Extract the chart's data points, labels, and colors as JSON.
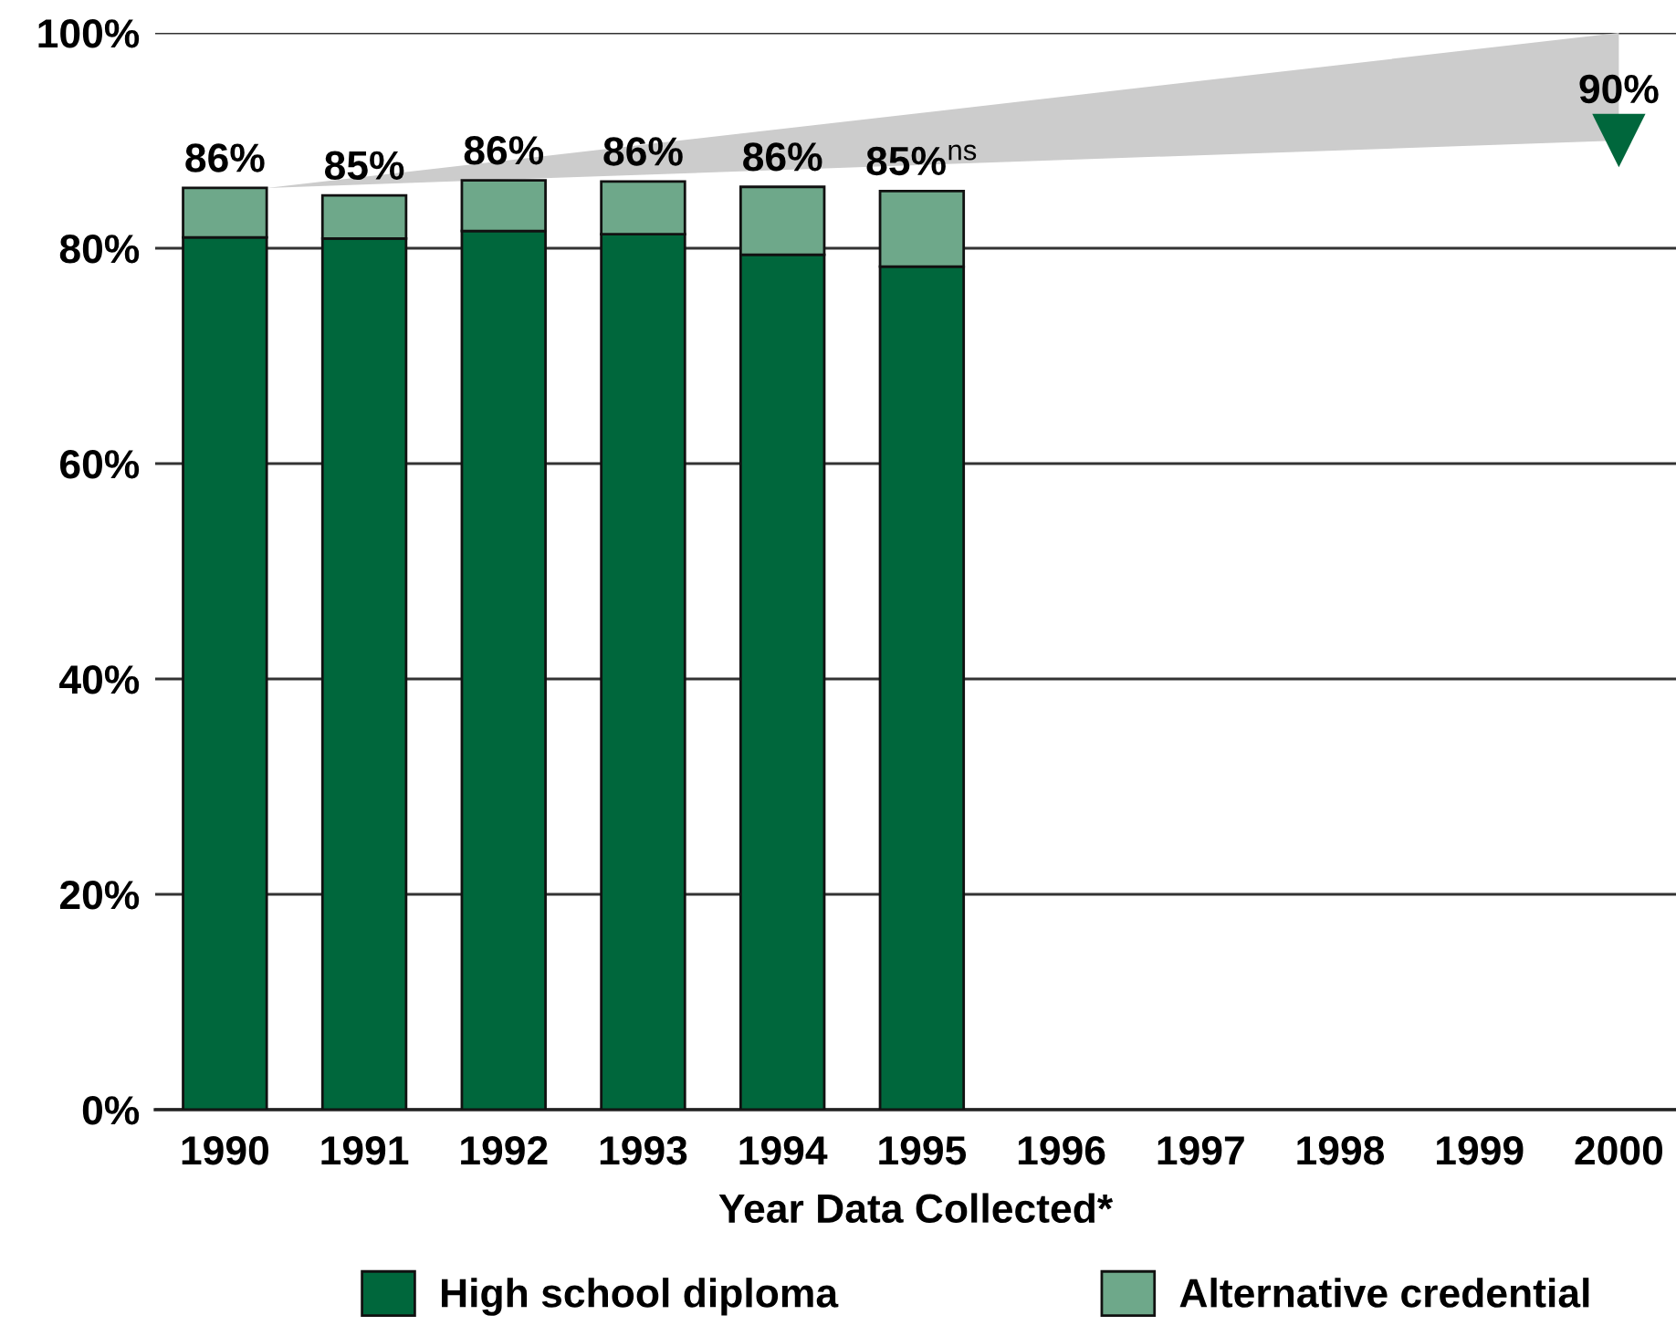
{
  "chart_data": {
    "type": "bar",
    "stacked": true,
    "categories": [
      "1990",
      "1991",
      "1992",
      "1993",
      "1994",
      "1995",
      "1996",
      "1997",
      "1998",
      "1999",
      "2000"
    ],
    "xlabel": "Year Data Collected*",
    "series": [
      {
        "name": "High school diploma",
        "color": "#00673c",
        "values": [
          81.0,
          80.9,
          81.6,
          81.3,
          79.4,
          78.3,
          null,
          null,
          null,
          null,
          null
        ]
      },
      {
        "name": "Alternative credential",
        "color": "#6ea88a",
        "values": [
          4.6,
          4.0,
          4.7,
          4.9,
          6.3,
          7.0,
          null,
          null,
          null,
          null,
          null
        ]
      },
      {
        "type": "scatter",
        "color": "#00673c",
        "values": [
          null,
          null,
          null,
          null,
          null,
          null,
          null,
          null,
          null,
          null,
          90
        ],
        "marker": "triangle",
        "value_labels": [
          null,
          null,
          null,
          null,
          null,
          null,
          null,
          null,
          null,
          null,
          "90%"
        ]
      }
    ],
    "totals": [
      "86%",
      "85%",
      "86%",
      "86%",
      "86%",
      "85%$^{ns}$",
      null,
      null,
      null,
      null,
      null
    ],
    "ylim": [
      0,
      100
    ],
    "yticks": [
      {
        "value": 0,
        "label": "0%"
      },
      {
        "value": 20,
        "label": "20%"
      },
      {
        "value": 40,
        "label": "40%"
      },
      {
        "value": 60,
        "label": "60%"
      },
      {
        "value": 80,
        "label": "80%"
      },
      {
        "value": 100,
        "label": "100%"
      }
    ],
    "grid": "y",
    "legend": "bottom"
  }
}
